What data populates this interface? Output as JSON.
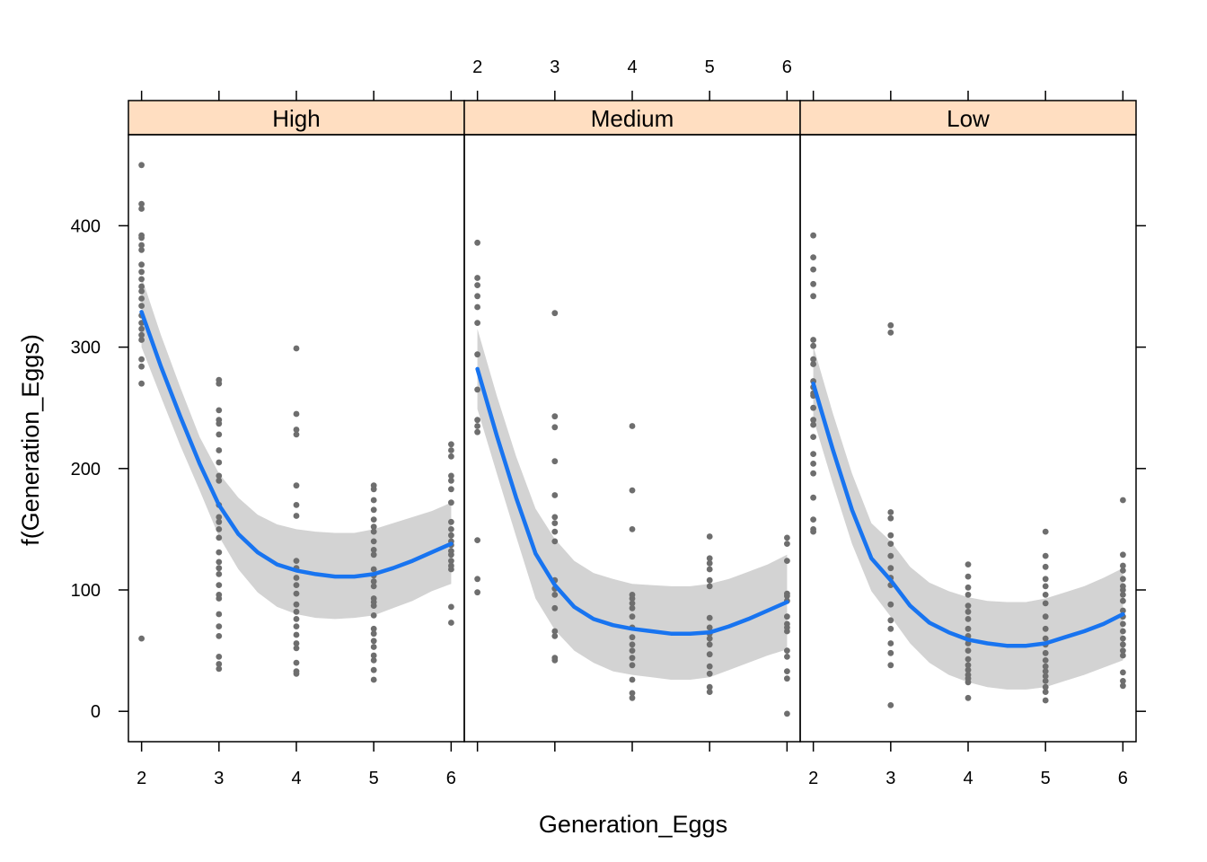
{
  "chart_data": {
    "type": "scatter",
    "xlabel": "Generation_Eggs",
    "ylabel": "f(Generation_Eggs)",
    "xlim": [
      1.83,
      6.17
    ],
    "ylim": [
      -25,
      475
    ],
    "x_ticks": [
      2,
      3,
      4,
      5,
      6
    ],
    "y_ticks": [
      0,
      100,
      200,
      300,
      400
    ],
    "grid": false,
    "strip_color": "#FFDEC1",
    "point_color": "#6E6E6E",
    "line_color": "#1874F0",
    "band_color": "#D3D3D3",
    "panels": [
      {
        "label": "High",
        "fit": {
          "x": [
            2,
            2.25,
            2.5,
            2.75,
            3,
            3.25,
            3.5,
            3.75,
            4,
            4.25,
            4.5,
            4.75,
            5,
            5.25,
            5.5,
            5.75,
            6
          ],
          "y": [
            329,
            284,
            243,
            204,
            170,
            146,
            131,
            121,
            116,
            113,
            111,
            111,
            113,
            118,
            124,
            131,
            138
          ],
          "lower": [
            300,
            259,
            219,
            182,
            144,
            117,
            98,
            86,
            80,
            77,
            76,
            77,
            79,
            85,
            91,
            99,
            105
          ],
          "upper": [
            358,
            310,
            267,
            226,
            196,
            176,
            162,
            154,
            150,
            148,
            147,
            147,
            150,
            155,
            160,
            165,
            172
          ]
        },
        "points": [
          {
            "x": 2,
            "y": [
              450,
              418,
              414,
              392,
              390,
              384,
              380,
              368,
              362,
              356,
              350,
              346,
              340,
              334,
              326,
              320,
              315,
              310,
              306,
              290,
              284,
              270,
              60
            ]
          },
          {
            "x": 3,
            "y": [
              273,
              270,
              248,
              240,
              237,
              228,
              215,
              205,
              194,
              190,
              170,
              160,
              156,
              150,
              143,
              131,
              123,
              118,
              113,
              104,
              96,
              93,
              80,
              70,
              62,
              45,
              39,
              35
            ]
          },
          {
            "x": 4,
            "y": [
              299,
              245,
              232,
              228,
              186,
              170,
              161,
              124,
              118,
              110,
              104,
              97,
              88,
              82,
              76,
              70,
              63,
              56,
              52,
              40,
              33,
              31
            ]
          },
          {
            "x": 5,
            "y": [
              186,
              183,
              174,
              166,
              158,
              152,
              148,
              140,
              133,
              129,
              117,
              112,
              107,
              103,
              93,
              90,
              87,
              79,
              68,
              64,
              58,
              53,
              46,
              42,
              34,
              26
            ]
          },
          {
            "x": 6,
            "y": [
              220,
              215,
              210,
              194,
              190,
              183,
              172,
              156,
              150,
              145,
              140,
              137,
              132,
              129,
              124,
              120,
              117,
              86,
              73
            ]
          }
        ]
      },
      {
        "label": "Medium",
        "fit": {
          "x": [
            2,
            2.25,
            2.5,
            2.75,
            3,
            3.25,
            3.5,
            3.75,
            4,
            4.25,
            4.5,
            4.75,
            5,
            5.25,
            5.5,
            5.75,
            6
          ],
          "y": [
            282,
            227,
            176,
            130,
            104,
            86,
            76,
            71,
            68,
            66,
            64,
            64,
            65,
            70,
            76,
            83,
            90
          ],
          "lower": [
            249,
            196,
            144,
            93,
            67,
            50,
            40,
            33,
            30,
            28,
            26,
            26,
            28,
            34,
            40,
            46,
            51
          ],
          "upper": [
            315,
            260,
            210,
            167,
            142,
            124,
            114,
            109,
            105,
            104,
            103,
            103,
            105,
            109,
            115,
            121,
            129
          ]
        },
        "points": [
          {
            "x": 2,
            "y": [
              386,
              357,
              351,
              342,
              333,
              320,
              294,
              265,
              240,
              235,
              230,
              141,
              109,
              98
            ]
          },
          {
            "x": 3,
            "y": [
              328,
              243,
              234,
              206,
              178,
              160,
              155,
              148,
              140,
              108,
              101,
              96,
              85,
              66,
              62,
              44,
              42
            ]
          },
          {
            "x": 4,
            "y": [
              235,
              182,
              150,
              96,
              93,
              89,
              85,
              78,
              69,
              61,
              55,
              50,
              44,
              38,
              26,
              15,
              11
            ]
          },
          {
            "x": 5,
            "y": [
              144,
              126,
              122,
              117,
              108,
              103,
              77,
              69,
              64,
              60,
              55,
              47,
              37,
              31,
              20,
              16
            ]
          },
          {
            "x": 6,
            "y": [
              143,
              138,
              124,
              97,
              95,
              91,
              78,
              72,
              69,
              66,
              50,
              45,
              33,
              27,
              -2
            ]
          }
        ]
      },
      {
        "label": "Low",
        "fit": {
          "x": [
            2,
            2.25,
            2.5,
            2.75,
            3,
            3.25,
            3.5,
            3.75,
            4,
            4.25,
            4.5,
            4.75,
            5,
            5.25,
            5.5,
            5.75,
            6
          ],
          "y": [
            270,
            216,
            166,
            126,
            108,
            87,
            73,
            65,
            59,
            56,
            54,
            54,
            56,
            61,
            66,
            72,
            80
          ],
          "lower": [
            241,
            188,
            138,
            99,
            78,
            56,
            40,
            30,
            24,
            20,
            18,
            18,
            20,
            25,
            30,
            36,
            42
          ],
          "upper": [
            301,
            246,
            196,
            155,
            140,
            119,
            106,
            99,
            94,
            91,
            90,
            90,
            93,
            98,
            103,
            110,
            118
          ]
        },
        "points": [
          {
            "x": 2,
            "y": [
              392,
              374,
              364,
              352,
              342,
              306,
              301,
              290,
              286,
              272,
              267,
              262,
              260,
              250,
              240,
              236,
              226,
              212,
              204,
              196,
              176,
              158,
              150,
              148
            ]
          },
          {
            "x": 3,
            "y": [
              318,
              312,
              164,
              159,
              145,
              138,
              128,
              118,
              110,
              104,
              88,
              75,
              68,
              56,
              48,
              38,
              5
            ]
          },
          {
            "x": 4,
            "y": [
              121,
              111,
              102,
              96,
              87,
              82,
              76,
              68,
              62,
              56,
              50,
              43,
              38,
              34,
              30,
              27,
              24,
              11
            ]
          },
          {
            "x": 5,
            "y": [
              148,
              128,
              119,
              109,
              103,
              96,
              89,
              78,
              68,
              60,
              55,
              48,
              42,
              37,
              33,
              29,
              25,
              20,
              16,
              9
            ]
          },
          {
            "x": 6,
            "y": [
              174,
              129,
              120,
              116,
              109,
              103,
              100,
              96,
              91,
              83,
              78,
              72,
              66,
              60,
              55,
              50,
              46,
              32,
              25,
              21
            ]
          }
        ]
      }
    ]
  }
}
